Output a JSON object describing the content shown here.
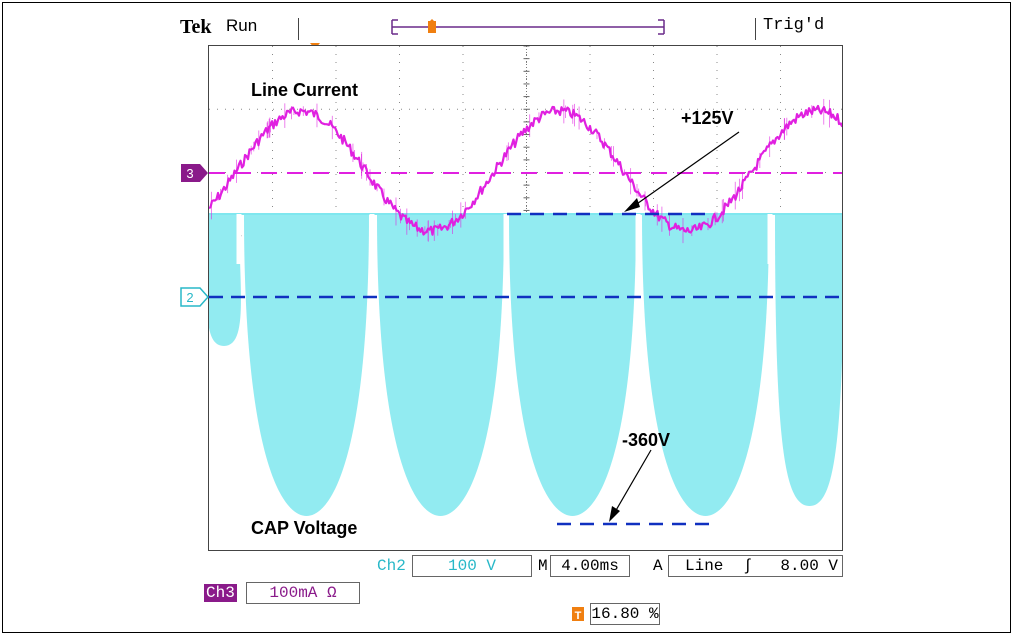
{
  "header": {
    "brand": "Tek",
    "run_status": "Run",
    "trigger_status": "Trig'd"
  },
  "annotations": {
    "line_current": "Line Current",
    "cap_voltage": "CAP Voltage",
    "plus_label": "+125V",
    "minus_label": "-360V"
  },
  "channel_markers": {
    "ch3": "3",
    "ch2": "2"
  },
  "readouts": {
    "ch2_label": "Ch2",
    "ch2_scale": "100 V",
    "timebase_prefix": "M",
    "timebase": "4.00ms",
    "trigger_source_prefix": "A",
    "trigger_source": "Line",
    "trigger_slope": "∫",
    "trigger_level": "8.00 V",
    "ch3_label": "Ch3",
    "ch3_scale": "100mA Ω",
    "trigger_position": "16.80 %"
  },
  "colors": {
    "ch3": "#e020e0",
    "ch2": "#7fe7ef",
    "ref_dash": "#1030c0",
    "ch3_badge": "#8a1a8a",
    "trigger_marker": "#f07f10"
  }
}
